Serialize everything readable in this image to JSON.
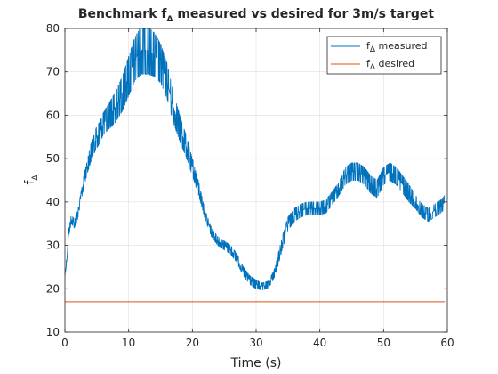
{
  "chart_data": {
    "type": "line",
    "title": {
      "prefix": "Benchmark f",
      "subscript": "Δ",
      "suffix": " measured vs desired for 3m/s target"
    },
    "xlabel": "Time (s)",
    "ylabel": {
      "base": "f",
      "subscript": "Δ"
    },
    "xlim": [
      0,
      60
    ],
    "ylim": [
      10,
      80
    ],
    "xticks": [
      "0",
      "10",
      "20",
      "30",
      "40",
      "50",
      "60"
    ],
    "yticks": [
      "10",
      "20",
      "30",
      "40",
      "50",
      "60",
      "70",
      "80"
    ],
    "grid": true,
    "legend": {
      "placement": "top-right"
    },
    "series": [
      {
        "name": {
          "base": "f",
          "subscript": "Δ",
          "suffix": " measured"
        },
        "color": "#0072bd",
        "x": [
          0,
          0.3,
          0.6,
          1,
          1.5,
          2,
          2.5,
          3,
          3.5,
          4,
          4.5,
          5,
          5.5,
          6,
          7,
          8,
          9,
          10,
          11,
          12,
          13,
          14,
          15,
          16,
          17,
          18,
          19,
          20,
          21,
          22,
          23,
          24,
          25,
          26,
          27,
          28,
          29,
          30,
          31,
          32,
          33,
          34,
          35,
          36,
          37,
          38,
          39,
          40,
          41,
          42,
          43,
          44,
          45,
          46,
          47,
          48,
          49,
          50,
          51,
          52,
          53,
          54,
          55,
          56,
          57,
          58,
          59,
          59.6
        ],
        "y": [
          23,
          27,
          33,
          36,
          35,
          37,
          41,
          45,
          48,
          51,
          53,
          55,
          56,
          58,
          60,
          62,
          65,
          69,
          73,
          75,
          75,
          74,
          72,
          68,
          62,
          57,
          53,
          48,
          43,
          37,
          33,
          31,
          30,
          29,
          27,
          24,
          22,
          21,
          20.5,
          21,
          24,
          30,
          35,
          37,
          38,
          38.5,
          38.5,
          38.5,
          39,
          41,
          43,
          46,
          47,
          47,
          46,
          44,
          43,
          46,
          47,
          46,
          44,
          42,
          40,
          38,
          37,
          38,
          39,
          40
        ],
        "noise": [
          0.3,
          0.5,
          0.8,
          1,
          1,
          1,
          1,
          1.5,
          1.5,
          2,
          2,
          2.5,
          2.5,
          2.5,
          3,
          3.5,
          4,
          4.5,
          5,
          5.5,
          5.5,
          5,
          4.5,
          4,
          3.5,
          3,
          2.5,
          2,
          1.5,
          1,
          1,
          1,
          1,
          1,
          1,
          1,
          1,
          1,
          0.8,
          0.8,
          1,
          1.5,
          1.5,
          1.5,
          1.5,
          1.5,
          1.5,
          1.5,
          1.5,
          1.5,
          1.5,
          2,
          2,
          2,
          2,
          2,
          2,
          2,
          2,
          2,
          2,
          2,
          1.5,
          1.5,
          1.5,
          1.5,
          1.5,
          1.5
        ]
      },
      {
        "name": {
          "base": "f",
          "subscript": "Δ",
          "suffix": " desired"
        },
        "color": "#d95319",
        "x": [
          0,
          59.6
        ],
        "y": [
          17,
          17
        ]
      }
    ]
  }
}
